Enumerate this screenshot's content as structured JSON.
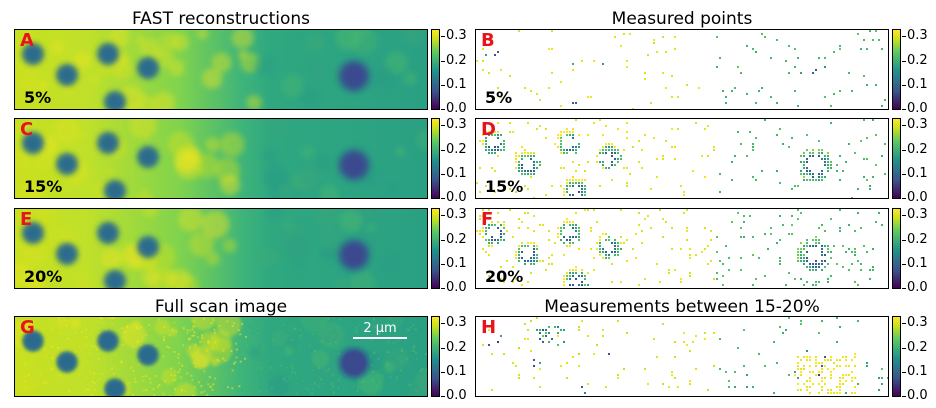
{
  "titles": {
    "fast": "FAST reconstructions",
    "measured": "Measured points",
    "full": "Full scan image",
    "between": "Measurements between 15-20%"
  },
  "colorbar_ticks": [
    "0.3",
    "0.2",
    "0.1",
    "0.0"
  ],
  "scale_bar": "2 μm",
  "panels": {
    "A": {
      "letter": "A",
      "pct": "5%"
    },
    "B": {
      "letter": "B",
      "pct": "5%"
    },
    "C": {
      "letter": "C",
      "pct": "15%"
    },
    "D": {
      "letter": "D",
      "pct": "15%"
    },
    "E": {
      "letter": "E",
      "pct": "20%"
    },
    "F": {
      "letter": "F",
      "pct": "20%"
    },
    "G": {
      "letter": "G"
    },
    "H": {
      "letter": "H"
    }
  },
  "colors": {
    "label_red": "#e8141c",
    "colormap": [
      "#440154",
      "#3b528b",
      "#21918c",
      "#5ec962",
      "#c8e020",
      "#fde725"
    ]
  }
}
